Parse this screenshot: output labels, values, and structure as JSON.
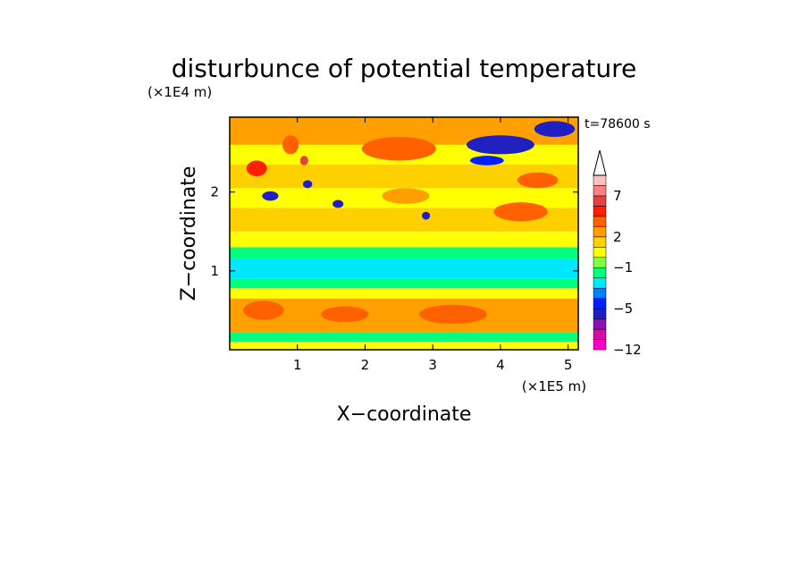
{
  "chart_data": {
    "type": "heatmap",
    "title": "disturbunce of potential temperature",
    "time_label": "t=78600 s",
    "xlabel": "X−coordinate",
    "ylabel": "Z−coordinate",
    "x_unit": "(×1E5 m)",
    "y_unit": "(×1E4 m)",
    "xlim": [
      0,
      5.15
    ],
    "ylim": [
      0,
      2.95
    ],
    "x_ticks": [
      "1",
      "2",
      "3",
      "4",
      "5"
    ],
    "x_tick_values": [
      1,
      2,
      3,
      4,
      5
    ],
    "y_ticks": [
      "1",
      "2"
    ],
    "y_tick_values": [
      1,
      2
    ],
    "colorbar": {
      "labels": [
        "7",
        "2",
        "−1",
        "−5",
        "−12"
      ],
      "label_values": [
        7,
        2,
        -1,
        -5,
        -12
      ],
      "levels_bottom_to_top": [
        -12,
        -10,
        -8,
        -6,
        -5,
        -4,
        -3,
        -2,
        -1,
        0,
        1,
        2,
        3,
        4,
        5,
        7,
        9,
        11
      ],
      "colors_bottom_to_top": [
        "#ff00cc",
        "#d40ca4",
        "#8a10b8",
        "#2020c0",
        "#0020ff",
        "#0080ff",
        "#00e8ff",
        "#00ff80",
        "#80ff40",
        "#ffff00",
        "#ffd000",
        "#ffa000",
        "#ff6000",
        "#ff2000",
        "#e84040",
        "#ff8080",
        "#ffc0c0"
      ],
      "extend": "max"
    },
    "bands": [
      {
        "z_from": 0.0,
        "z_to": 0.1,
        "value": 0.5
      },
      {
        "z_from": 0.1,
        "z_to": 0.22,
        "value": -1.5
      },
      {
        "z_from": 0.22,
        "z_to": 0.65,
        "value": 2.5
      },
      {
        "z_from": 0.65,
        "z_to": 0.78,
        "value": 0.5
      },
      {
        "z_from": 0.78,
        "z_to": 0.9,
        "value": -1.5
      },
      {
        "z_from": 0.9,
        "z_to": 1.15,
        "value": -2.5
      },
      {
        "z_from": 1.15,
        "z_to": 1.3,
        "value": -1.5
      },
      {
        "z_from": 1.3,
        "z_to": 1.5,
        "value": 0.5
      },
      {
        "z_from": 1.5,
        "z_to": 1.8,
        "value": 1.5
      },
      {
        "z_from": 1.8,
        "z_to": 2.05,
        "value": 0.5
      },
      {
        "z_from": 2.05,
        "z_to": 2.35,
        "value": 1.5
      },
      {
        "z_from": 2.35,
        "z_to": 2.6,
        "value": 0.5
      },
      {
        "z_from": 2.6,
        "z_to": 2.95,
        "value": 2.5
      }
    ],
    "features": [
      {
        "x": 0.5,
        "z": 0.5,
        "rx": 0.3,
        "rz": 0.12,
        "value": 3.5
      },
      {
        "x": 1.7,
        "z": 0.45,
        "rx": 0.35,
        "rz": 0.1,
        "value": 3.5
      },
      {
        "x": 3.3,
        "z": 0.45,
        "rx": 0.5,
        "rz": 0.12,
        "value": 3.5
      },
      {
        "x": 2.5,
        "z": 2.55,
        "rx": 0.55,
        "rz": 0.15,
        "value": 3.5
      },
      {
        "x": 4.3,
        "z": 1.75,
        "rx": 0.4,
        "rz": 0.12,
        "value": 3.5
      },
      {
        "x": 0.4,
        "z": 2.3,
        "rx": 0.15,
        "rz": 0.1,
        "value": 4.5
      },
      {
        "x": 0.9,
        "z": 2.6,
        "rx": 0.12,
        "rz": 0.12,
        "value": 3.5
      },
      {
        "x": 1.1,
        "z": 2.4,
        "rx": 0.06,
        "rz": 0.06,
        "value": 6
      },
      {
        "x": 0.6,
        "z": 1.95,
        "rx": 0.12,
        "rz": 0.06,
        "value": -5.5
      },
      {
        "x": 1.15,
        "z": 2.1,
        "rx": 0.07,
        "rz": 0.05,
        "value": -5.5
      },
      {
        "x": 1.6,
        "z": 1.85,
        "rx": 0.08,
        "rz": 0.05,
        "value": -5.5
      },
      {
        "x": 2.9,
        "z": 1.7,
        "rx": 0.06,
        "rz": 0.05,
        "value": -5.5
      },
      {
        "x": 4.0,
        "z": 2.6,
        "rx": 0.5,
        "rz": 0.12,
        "value": -5.5
      },
      {
        "x": 4.8,
        "z": 2.8,
        "rx": 0.3,
        "rz": 0.1,
        "value": -5.5
      },
      {
        "x": 3.8,
        "z": 2.4,
        "rx": 0.25,
        "rz": 0.06,
        "value": -4.5
      },
      {
        "x": 4.55,
        "z": 2.15,
        "rx": 0.3,
        "rz": 0.1,
        "value": 3.5
      },
      {
        "x": 2.6,
        "z": 1.95,
        "rx": 0.35,
        "rz": 0.1,
        "value": 2.5
      }
    ]
  }
}
